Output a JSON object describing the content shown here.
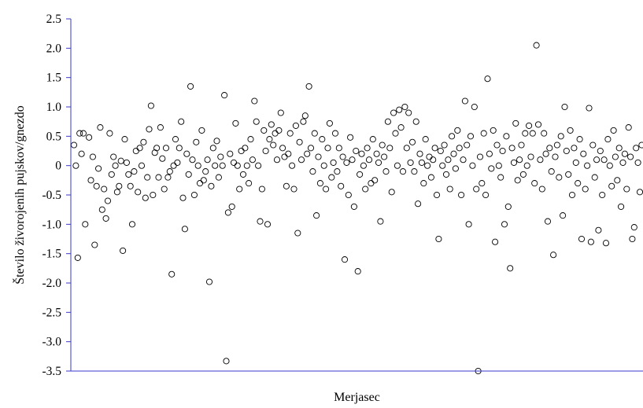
{
  "chart_data": {
    "type": "scatter",
    "title": "",
    "xlabel": "Merjasec",
    "ylabel": "Število živorojenih pujskov/gnezdo",
    "ylim": [
      -3.5,
      2.5
    ],
    "yticks": [
      "2.5",
      "2.0",
      "1.5",
      "1.0",
      "0.5",
      "0",
      "-0.5",
      "-1.0",
      "-1.5",
      "-2.0",
      "-2.5",
      "-3.0",
      "-3.5"
    ],
    "xrange": [
      0,
      800
    ],
    "axis_color": "#3a3acc",
    "marker": "open-circle",
    "grid": false,
    "series": [
      {
        "points": [
          [
            0,
            0.35
          ],
          [
            1,
            0.0
          ],
          [
            2,
            -1.57
          ],
          [
            3,
            0.55
          ],
          [
            4,
            0.2
          ],
          [
            5,
            0.55
          ],
          [
            6,
            -1.0
          ],
          [
            8,
            0.48
          ],
          [
            9,
            -0.25
          ],
          [
            10,
            0.15
          ],
          [
            11,
            -1.35
          ],
          [
            12,
            -0.35
          ],
          [
            13,
            -0.05
          ],
          [
            14,
            0.65
          ],
          [
            15,
            -0.75
          ],
          [
            16,
            -0.4
          ],
          [
            17,
            -0.9
          ],
          [
            18,
            -0.6
          ],
          [
            19,
            0.55
          ],
          [
            20,
            -0.15
          ],
          [
            21,
            0.15
          ],
          [
            22,
            0.0
          ],
          [
            23,
            -0.45
          ],
          [
            24,
            -0.35
          ],
          [
            25,
            0.08
          ],
          [
            26,
            -1.45
          ],
          [
            27,
            0.45
          ],
          [
            28,
            0.05
          ],
          [
            29,
            -0.15
          ],
          [
            30,
            -0.35
          ],
          [
            31,
            -1.0
          ],
          [
            32,
            -0.1
          ],
          [
            33,
            0.25
          ],
          [
            34,
            -0.45
          ],
          [
            35,
            0.3
          ],
          [
            36,
            0.0
          ],
          [
            37,
            0.4
          ],
          [
            38,
            -0.55
          ],
          [
            39,
            -0.2
          ],
          [
            40,
            0.62
          ],
          [
            41,
            1.02
          ],
          [
            42,
            -0.5
          ],
          [
            43,
            0.22
          ],
          [
            44,
            0.3
          ],
          [
            45,
            -0.2
          ],
          [
            46,
            0.65
          ],
          [
            47,
            0.12
          ],
          [
            48,
            -0.4
          ],
          [
            49,
            0.3
          ],
          [
            50,
            -0.2
          ],
          [
            51,
            -0.1
          ],
          [
            52,
            -1.85
          ],
          [
            53,
            0.0
          ],
          [
            54,
            0.45
          ],
          [
            55,
            0.05
          ],
          [
            56,
            0.3
          ],
          [
            57,
            0.75
          ],
          [
            58,
            -0.55
          ],
          [
            59,
            -1.08
          ],
          [
            60,
            0.2
          ],
          [
            61,
            -0.15
          ],
          [
            62,
            1.35
          ],
          [
            63,
            0.1
          ],
          [
            64,
            -0.5
          ],
          [
            65,
            0.4
          ],
          [
            66,
            0.0
          ],
          [
            67,
            -0.3
          ],
          [
            68,
            0.6
          ],
          [
            69,
            -0.25
          ],
          [
            70,
            -0.1
          ],
          [
            71,
            0.1
          ],
          [
            72,
            -1.98
          ],
          [
            73,
            -0.35
          ],
          [
            74,
            0.3
          ],
          [
            75,
            0.0
          ],
          [
            76,
            0.42
          ],
          [
            77,
            -0.2
          ],
          [
            78,
            0.15
          ],
          [
            79,
            0.0
          ],
          [
            80,
            1.2
          ],
          [
            81,
            -3.33
          ],
          [
            82,
            -0.8
          ],
          [
            83,
            0.2
          ],
          [
            84,
            -0.7
          ],
          [
            85,
            0.05
          ],
          [
            86,
            0.72
          ],
          [
            87,
            0.0
          ],
          [
            88,
            -0.4
          ],
          [
            89,
            0.25
          ],
          [
            90,
            -0.15
          ],
          [
            91,
            0.3
          ],
          [
            92,
            0.0
          ],
          [
            93,
            -0.3
          ],
          [
            94,
            0.45
          ],
          [
            95,
            0.1
          ],
          [
            96,
            1.1
          ],
          [
            97,
            0.75
          ],
          [
            98,
            0.0
          ],
          [
            99,
            -0.95
          ],
          [
            100,
            -0.4
          ],
          [
            101,
            0.6
          ],
          [
            102,
            0.25
          ],
          [
            103,
            -1.0
          ],
          [
            104,
            0.45
          ],
          [
            105,
            0.7
          ],
          [
            106,
            0.35
          ],
          [
            107,
            0.55
          ],
          [
            108,
            0.1
          ],
          [
            109,
            0.6
          ],
          [
            110,
            0.9
          ],
          [
            111,
            0.3
          ],
          [
            112,
            0.15
          ],
          [
            113,
            -0.35
          ],
          [
            114,
            0.2
          ],
          [
            115,
            0.55
          ],
          [
            116,
            0.0
          ],
          [
            117,
            -0.4
          ],
          [
            118,
            0.68
          ],
          [
            119,
            -1.15
          ],
          [
            120,
            0.4
          ],
          [
            121,
            0.1
          ],
          [
            122,
            0.75
          ],
          [
            123,
            0.85
          ],
          [
            124,
            0.2
          ],
          [
            125,
            1.35
          ],
          [
            126,
            0.3
          ],
          [
            127,
            -0.1
          ],
          [
            128,
            0.55
          ],
          [
            129,
            -0.85
          ],
          [
            130,
            0.15
          ],
          [
            131,
            -0.3
          ],
          [
            132,
            0.45
          ],
          [
            133,
            0.0
          ],
          [
            134,
            -0.4
          ],
          [
            135,
            0.3
          ],
          [
            136,
            0.72
          ],
          [
            137,
            -0.2
          ],
          [
            138,
            0.05
          ],
          [
            139,
            0.55
          ],
          [
            140,
            -0.1
          ],
          [
            141,
            0.3
          ],
          [
            142,
            -0.35
          ],
          [
            143,
            0.15
          ],
          [
            144,
            -1.6
          ],
          [
            145,
            0.05
          ],
          [
            146,
            -0.5
          ],
          [
            147,
            0.48
          ],
          [
            148,
            0.1
          ],
          [
            149,
            -0.7
          ],
          [
            150,
            0.25
          ],
          [
            151,
            -1.8
          ],
          [
            152,
            -0.15
          ],
          [
            153,
            0.2
          ],
          [
            154,
            0.0
          ],
          [
            155,
            -0.4
          ],
          [
            156,
            0.3
          ],
          [
            157,
            0.1
          ],
          [
            158,
            -0.3
          ],
          [
            159,
            0.45
          ],
          [
            160,
            -0.25
          ],
          [
            161,
            0.2
          ],
          [
            162,
            0.05
          ],
          [
            163,
            -0.95
          ],
          [
            164,
            0.35
          ],
          [
            165,
            0.15
          ],
          [
            166,
            -0.1
          ],
          [
            167,
            0.75
          ],
          [
            168,
            0.3
          ],
          [
            169,
            -0.45
          ],
          [
            170,
            0.9
          ],
          [
            171,
            0.55
          ],
          [
            172,
            0.0
          ],
          [
            173,
            0.95
          ],
          [
            174,
            0.65
          ],
          [
            175,
            -0.1
          ],
          [
            176,
            1.0
          ],
          [
            177,
            0.3
          ],
          [
            178,
            0.9
          ],
          [
            179,
            0.05
          ],
          [
            180,
            0.4
          ],
          [
            181,
            -0.1
          ],
          [
            182,
            0.75
          ],
          [
            183,
            -0.65
          ],
          [
            184,
            0.2
          ],
          [
            185,
            0.05
          ],
          [
            186,
            -0.3
          ],
          [
            187,
            0.45
          ],
          [
            188,
            0.0
          ],
          [
            189,
            0.15
          ],
          [
            190,
            -0.2
          ],
          [
            191,
            0.1
          ],
          [
            192,
            0.3
          ],
          [
            193,
            -0.5
          ],
          [
            194,
            -1.25
          ],
          [
            195,
            0.25
          ],
          [
            196,
            0.0
          ],
          [
            197,
            0.35
          ],
          [
            198,
            -0.15
          ],
          [
            199,
            0.1
          ],
          [
            200,
            -0.4
          ],
          [
            201,
            0.5
          ],
          [
            202,
            0.2
          ],
          [
            203,
            -0.05
          ],
          [
            204,
            0.6
          ],
          [
            205,
            0.3
          ],
          [
            206,
            -0.5
          ],
          [
            207,
            0.1
          ],
          [
            208,
            1.1
          ],
          [
            209,
            0.35
          ],
          [
            210,
            -1.0
          ],
          [
            211,
            0.5
          ],
          [
            212,
            0.0
          ],
          [
            213,
            1.0
          ],
          [
            214,
            -0.4
          ],
          [
            215,
            -3.5
          ],
          [
            216,
            0.15
          ],
          [
            217,
            -0.3
          ],
          [
            218,
            0.55
          ],
          [
            219,
            -0.5
          ],
          [
            220,
            1.48
          ],
          [
            221,
            0.2
          ],
          [
            222,
            -0.05
          ],
          [
            223,
            0.6
          ],
          [
            224,
            -1.3
          ],
          [
            225,
            0.35
          ],
          [
            226,
            0.0
          ],
          [
            227,
            -0.2
          ],
          [
            228,
            0.25
          ],
          [
            229,
            -1.0
          ],
          [
            230,
            0.5
          ],
          [
            231,
            -0.7
          ],
          [
            232,
            -1.75
          ],
          [
            233,
            0.3
          ],
          [
            234,
            0.05
          ],
          [
            235,
            0.72
          ],
          [
            236,
            -0.25
          ],
          [
            237,
            0.1
          ],
          [
            238,
            0.35
          ],
          [
            239,
            -0.15
          ],
          [
            240,
            0.55
          ],
          [
            241,
            0.0
          ],
          [
            242,
            0.68
          ],
          [
            243,
            0.15
          ],
          [
            244,
            0.55
          ],
          [
            245,
            -0.3
          ],
          [
            246,
            2.05
          ],
          [
            247,
            0.7
          ],
          [
            248,
            0.1
          ],
          [
            249,
            -0.4
          ],
          [
            250,
            0.55
          ],
          [
            251,
            0.2
          ],
          [
            252,
            -0.95
          ],
          [
            253,
            0.3
          ],
          [
            254,
            -0.1
          ],
          [
            255,
            -1.52
          ],
          [
            256,
            0.15
          ],
          [
            257,
            0.35
          ],
          [
            258,
            -0.2
          ],
          [
            259,
            0.5
          ],
          [
            260,
            -0.85
          ],
          [
            261,
            1.0
          ],
          [
            262,
            0.25
          ],
          [
            263,
            -0.15
          ],
          [
            264,
            0.6
          ],
          [
            265,
            -0.5
          ],
          [
            266,
            0.3
          ],
          [
            267,
            0.05
          ],
          [
            268,
            -0.3
          ],
          [
            269,
            0.45
          ],
          [
            270,
            -1.25
          ],
          [
            271,
            0.2
          ],
          [
            272,
            -0.4
          ],
          [
            273,
            0.0
          ],
          [
            274,
            0.98
          ],
          [
            275,
            -1.3
          ],
          [
            276,
            0.35
          ],
          [
            277,
            -0.2
          ],
          [
            278,
            0.1
          ],
          [
            279,
            -1.1
          ],
          [
            280,
            0.25
          ],
          [
            281,
            -0.5
          ],
          [
            282,
            0.1
          ],
          [
            283,
            -1.32
          ],
          [
            284,
            0.45
          ],
          [
            285,
            0.0
          ],
          [
            286,
            -0.35
          ],
          [
            287,
            0.6
          ],
          [
            288,
            0.15
          ],
          [
            289,
            -0.25
          ],
          [
            290,
            0.3
          ],
          [
            291,
            -0.7
          ],
          [
            292,
            0.05
          ],
          [
            293,
            0.2
          ],
          [
            294,
            -0.4
          ],
          [
            295,
            0.65
          ],
          [
            296,
            0.15
          ],
          [
            297,
            -1.25
          ],
          [
            298,
            -1.05
          ],
          [
            299,
            0.3
          ],
          [
            300,
            0.05
          ],
          [
            301,
            -0.45
          ],
          [
            302,
            0.35
          ]
        ]
      }
    ]
  }
}
